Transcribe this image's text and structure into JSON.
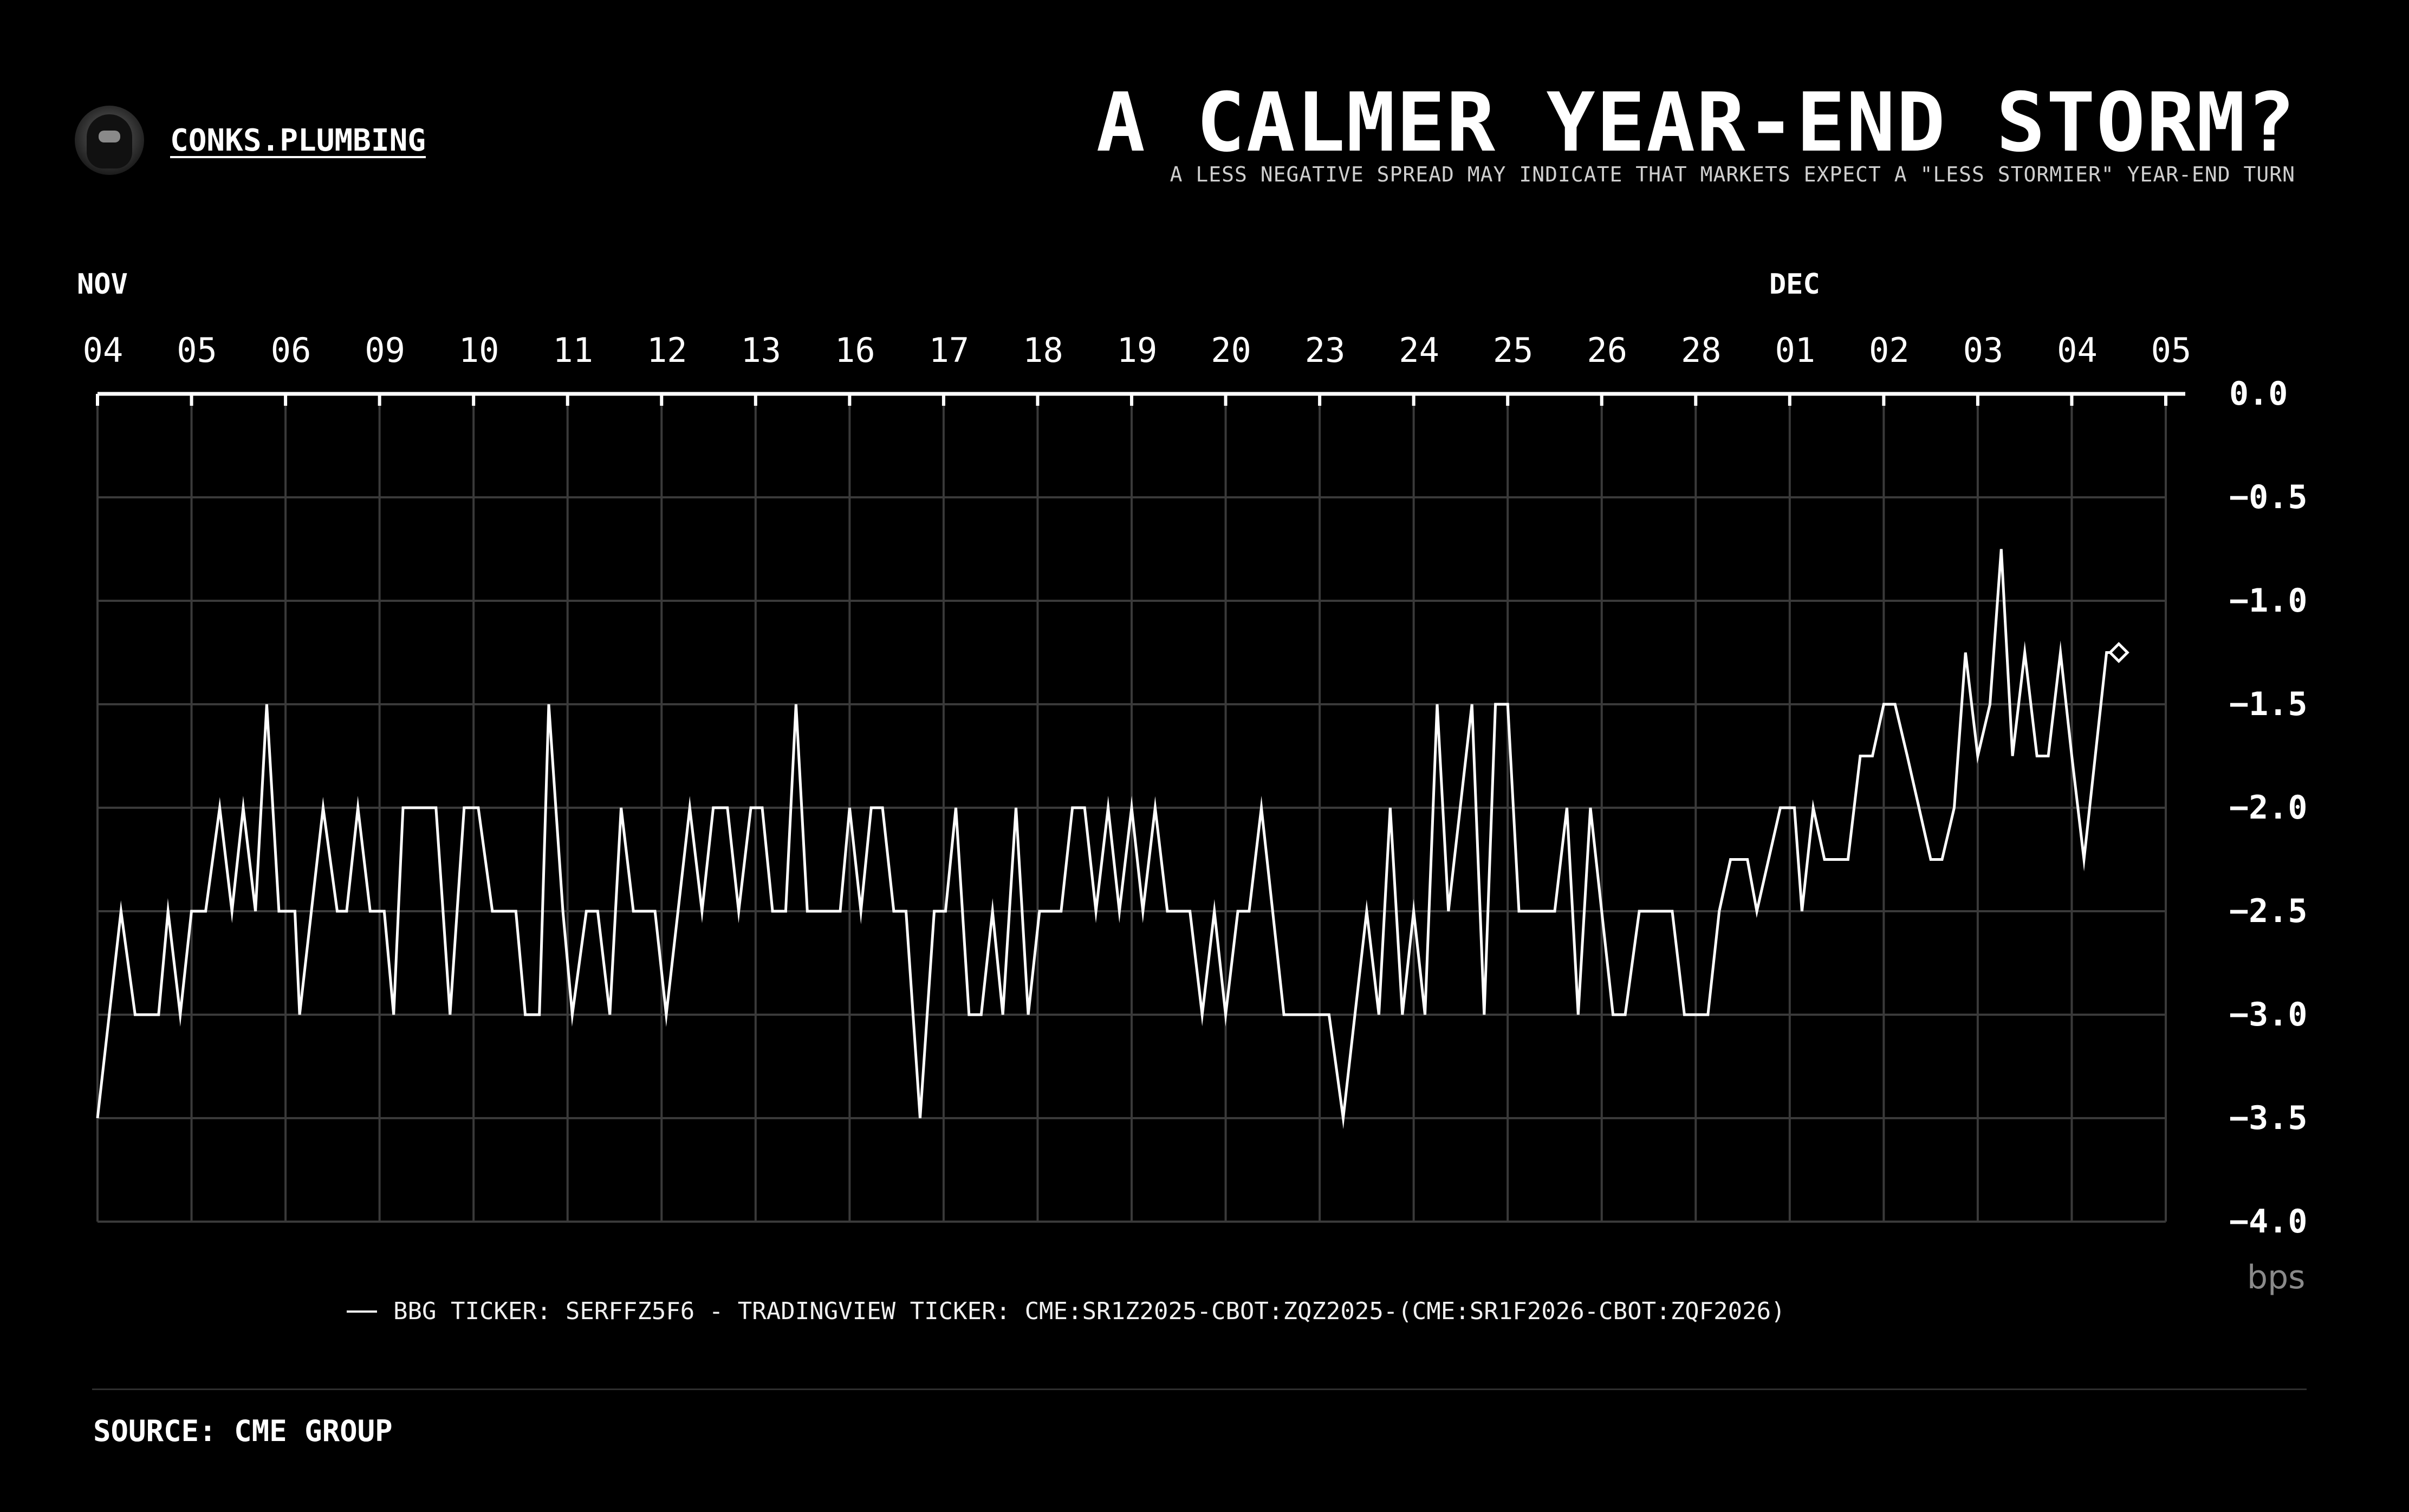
{
  "header": {
    "brand": "CONKS.PLUMBING",
    "title": "A CALMER YEAR-END STORM?",
    "subtitle": "A LESS NEGATIVE SPREAD MAY INDICATE THAT MARKETS EXPECT A \"LESS STORMIER\" YEAR-END TURN"
  },
  "footer": {
    "source": "SOURCE: CME GROUP"
  },
  "chart_data": {
    "type": "line",
    "month_labels": [
      {
        "label": "NOV",
        "at_day": 0
      },
      {
        "label": "DEC",
        "at_day": 18
      }
    ],
    "x_ticks": [
      "04",
      "05",
      "06",
      "09",
      "10",
      "11",
      "12",
      "13",
      "16",
      "17",
      "18",
      "19",
      "20",
      "23",
      "24",
      "25",
      "26",
      "28",
      "01",
      "02",
      "03",
      "04",
      "05"
    ],
    "y_ticks": [
      0.0,
      -0.5,
      -1.0,
      -1.5,
      -2.0,
      -2.5,
      -3.0,
      -3.5,
      -4.0
    ],
    "y_tick_labels": [
      "0.0",
      "−0.5",
      "−1.0",
      "−1.5",
      "−2.0",
      "−2.5",
      "−3.0",
      "−3.5",
      "−4.0"
    ],
    "ylim": [
      -4.0,
      0.0
    ],
    "yunit": "bps",
    "grid": true,
    "legend_position": "bottom",
    "series": [
      {
        "name": "BBG TICKER: SERFFZ5F6 - TRADINGVIEW TICKER: CME:SR1Z2025-CBOT:ZQZ2025-(CME:SR1F2026-CBOT:ZQF2026)",
        "color": "#ffffff",
        "end_marker": "diamond",
        "points": [
          [
            0.0,
            -3.5
          ],
          [
            0.25,
            -2.5
          ],
          [
            0.4,
            -3.0
          ],
          [
            0.65,
            -3.0
          ],
          [
            0.75,
            -2.5
          ],
          [
            0.88,
            -3.0
          ],
          [
            1.0,
            -2.5
          ],
          [
            1.15,
            -2.5
          ],
          [
            1.3,
            -2.0
          ],
          [
            1.43,
            -2.5
          ],
          [
            1.55,
            -2.0
          ],
          [
            1.68,
            -2.5
          ],
          [
            1.8,
            -1.5
          ],
          [
            1.93,
            -2.5
          ],
          [
            2.1,
            -2.5
          ],
          [
            2.15,
            -3.0
          ],
          [
            2.4,
            -2.0
          ],
          [
            2.55,
            -2.5
          ],
          [
            2.65,
            -2.5
          ],
          [
            2.77,
            -2.0
          ],
          [
            2.9,
            -2.5
          ],
          [
            3.05,
            -2.5
          ],
          [
            3.15,
            -3.0
          ],
          [
            3.25,
            -2.0
          ],
          [
            3.6,
            -2.0
          ],
          [
            3.75,
            -3.0
          ],
          [
            3.9,
            -2.0
          ],
          [
            4.05,
            -2.0
          ],
          [
            4.2,
            -2.5
          ],
          [
            4.45,
            -2.5
          ],
          [
            4.55,
            -3.0
          ],
          [
            4.7,
            -3.0
          ],
          [
            4.8,
            -1.5
          ],
          [
            4.95,
            -2.5
          ],
          [
            5.05,
            -3.0
          ],
          [
            5.2,
            -2.5
          ],
          [
            5.32,
            -2.5
          ],
          [
            5.45,
            -3.0
          ],
          [
            5.57,
            -2.0
          ],
          [
            5.7,
            -2.5
          ],
          [
            5.93,
            -2.5
          ],
          [
            6.05,
            -3.0
          ],
          [
            6.3,
            -2.0
          ],
          [
            6.43,
            -2.5
          ],
          [
            6.55,
            -2.0
          ],
          [
            6.7,
            -2.0
          ],
          [
            6.82,
            -2.5
          ],
          [
            6.95,
            -2.0
          ],
          [
            7.07,
            -2.0
          ],
          [
            7.18,
            -2.5
          ],
          [
            7.32,
            -2.5
          ],
          [
            7.43,
            -1.5
          ],
          [
            7.55,
            -2.5
          ],
          [
            7.9,
            -2.5
          ],
          [
            8.0,
            -2.0
          ],
          [
            8.12,
            -2.5
          ],
          [
            8.23,
            -2.0
          ],
          [
            8.35,
            -2.0
          ],
          [
            8.47,
            -2.5
          ],
          [
            8.6,
            -2.5
          ],
          [
            8.75,
            -3.5
          ],
          [
            8.9,
            -2.5
          ],
          [
            9.02,
            -2.5
          ],
          [
            9.13,
            -2.0
          ],
          [
            9.27,
            -3.0
          ],
          [
            9.4,
            -3.0
          ],
          [
            9.52,
            -2.5
          ],
          [
            9.63,
            -3.0
          ],
          [
            9.77,
            -2.0
          ],
          [
            9.9,
            -3.0
          ],
          [
            10.02,
            -2.5
          ],
          [
            10.25,
            -2.5
          ],
          [
            10.37,
            -2.0
          ],
          [
            10.5,
            -2.0
          ],
          [
            10.62,
            -2.5
          ],
          [
            10.75,
            -2.0
          ],
          [
            10.87,
            -2.5
          ],
          [
            11.0,
            -2.0
          ],
          [
            11.12,
            -2.5
          ],
          [
            11.25,
            -2.0
          ],
          [
            11.38,
            -2.5
          ],
          [
            11.62,
            -2.5
          ],
          [
            11.75,
            -3.0
          ],
          [
            11.88,
            -2.5
          ],
          [
            12.0,
            -3.0
          ],
          [
            12.13,
            -2.5
          ],
          [
            12.25,
            -2.5
          ],
          [
            12.38,
            -2.0
          ],
          [
            12.5,
            -2.5
          ],
          [
            12.62,
            -3.0
          ],
          [
            12.95,
            -3.0
          ],
          [
            13.1,
            -3.0
          ],
          [
            13.25,
            -3.5
          ],
          [
            13.5,
            -2.5
          ],
          [
            13.63,
            -3.0
          ],
          [
            13.75,
            -2.0
          ],
          [
            13.88,
            -3.0
          ],
          [
            14.0,
            -2.5
          ],
          [
            14.12,
            -3.0
          ],
          [
            14.25,
            -1.5
          ],
          [
            14.37,
            -2.5
          ],
          [
            14.62,
            -1.5
          ],
          [
            14.75,
            -3.0
          ],
          [
            14.87,
            -1.5
          ],
          [
            15.0,
            -1.5
          ],
          [
            15.12,
            -2.5
          ],
          [
            15.37,
            -2.5
          ],
          [
            15.5,
            -2.5
          ],
          [
            15.63,
            -2.0
          ],
          [
            15.75,
            -3.0
          ],
          [
            15.88,
            -2.0
          ],
          [
            16.0,
            -2.5
          ],
          [
            16.12,
            -3.0
          ],
          [
            16.25,
            -3.0
          ],
          [
            16.4,
            -2.5
          ],
          [
            16.75,
            -2.5
          ],
          [
            16.88,
            -3.0
          ],
          [
            17.13,
            -3.0
          ],
          [
            17.25,
            -2.5
          ],
          [
            17.37,
            -2.25
          ],
          [
            17.55,
            -2.25
          ],
          [
            17.65,
            -2.5
          ],
          [
            17.9,
            -2.0
          ],
          [
            18.05,
            -2.0
          ],
          [
            18.13,
            -2.5
          ],
          [
            18.25,
            -2.0
          ],
          [
            18.37,
            -2.25
          ],
          [
            18.62,
            -2.25
          ],
          [
            18.75,
            -1.75
          ],
          [
            18.88,
            -1.75
          ],
          [
            19.0,
            -1.5
          ],
          [
            19.12,
            -1.5
          ],
          [
            19.25,
            -1.75
          ],
          [
            19.5,
            -2.25
          ],
          [
            19.62,
            -2.25
          ],
          [
            19.75,
            -2.0
          ],
          [
            19.87,
            -1.25
          ],
          [
            20.0,
            -1.75
          ],
          [
            20.13,
            -1.5
          ],
          [
            20.25,
            -0.75
          ],
          [
            20.37,
            -1.75
          ],
          [
            20.5,
            -1.25
          ],
          [
            20.63,
            -1.75
          ],
          [
            20.75,
            -1.75
          ],
          [
            20.88,
            -1.25
          ],
          [
            21.0,
            -1.75
          ],
          [
            21.13,
            -2.25
          ],
          [
            21.37,
            -1.25
          ],
          [
            21.5,
            -1.25
          ]
        ]
      }
    ]
  }
}
